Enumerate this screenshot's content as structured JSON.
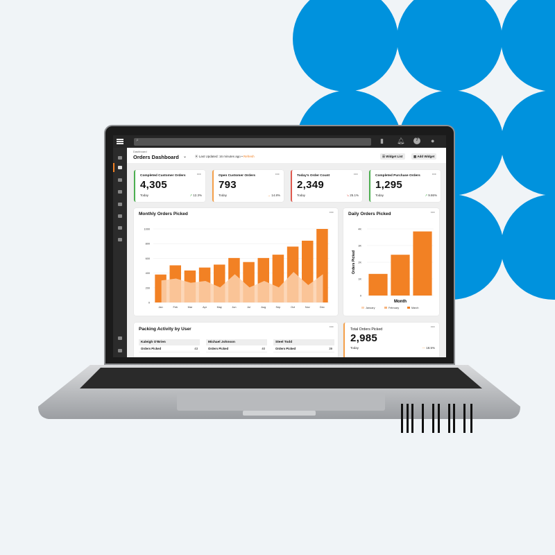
{
  "colors": {
    "accent": "#f28124",
    "brand_blue": "#0092dd",
    "green": "#4caf50",
    "red": "#e05a4f"
  },
  "topbar": {
    "icons": [
      "menu-icon",
      "search-icon",
      "bookmark-icon",
      "bell-icon",
      "help-icon",
      "user-icon"
    ]
  },
  "header": {
    "breadcrumb": "Dashboard",
    "title": "Orders Dashboard",
    "updated": "Last Updated: 16 minutes ago",
    "refresh": "Refresh",
    "widget_list": "Widget List",
    "add_widget": "Add Widget"
  },
  "kpis": [
    {
      "title": "Completed Customer Orders",
      "value": "4,305",
      "period": "Today",
      "change": "12.3%",
      "trend": "up",
      "color": "#4caf50"
    },
    {
      "title": "Open Customer Orders",
      "value": "793",
      "period": "Today",
      "change": "14.8%",
      "trend": "flat",
      "color": "#f5a04a"
    },
    {
      "title": "Today's Order Count",
      "value": "2,349",
      "period": "Today",
      "change": "25.1%",
      "trend": "down",
      "color": "#e05a4f"
    },
    {
      "title": "Completed Purchase Orders",
      "value": "1,295",
      "period": "Today",
      "change": "9.86%",
      "trend": "up",
      "color": "#4caf50"
    }
  ],
  "chart_data": [
    {
      "type": "bar",
      "title": "Monthly Orders Picked",
      "categories": [
        "Jan",
        "Feb",
        "Mar",
        "Apr",
        "May",
        "Jun",
        "Jul",
        "Aug",
        "Sep",
        "Oct",
        "Nov",
        "Dec"
      ],
      "series": [
        {
          "values": [
            380,
            505,
            435,
            475,
            515,
            605,
            550,
            605,
            650,
            760,
            840,
            1000
          ]
        },
        {
          "type": "area",
          "values": [
            300,
            325,
            268,
            293,
            205,
            385,
            205,
            293,
            205,
            415,
            237,
            385
          ]
        }
      ],
      "yticks": [
        "0",
        "200",
        "400",
        "600",
        "800",
        "1000"
      ],
      "ylim": [
        0,
        1000
      ],
      "grid": true
    },
    {
      "type": "bar",
      "title": "Daily Orders Picked",
      "xlabel": "Month",
      "ylabel": "Orders Picked",
      "categories": [
        "January",
        "February",
        "March"
      ],
      "values": [
        1300,
        2450,
        3850
      ],
      "yticks": [
        "0",
        "1K",
        "2K",
        "3K",
        "4K"
      ],
      "ylim": [
        0,
        4000
      ],
      "legend": "bottom",
      "grid": true
    }
  ],
  "packing": {
    "title": "Packing Activity by User",
    "users": [
      {
        "name": "Kaleigh O'Brien",
        "label": "Orders Picked",
        "value": "43"
      },
      {
        "name": "Michael Johnson",
        "label": "Orders Picked",
        "value": "40"
      },
      {
        "name": "Steel Todd",
        "label": "Orders Picked",
        "value": "39"
      }
    ]
  },
  "total": {
    "title": "Total Orders Picked",
    "value": "2,985",
    "period": "Today",
    "change": "18.5%"
  }
}
